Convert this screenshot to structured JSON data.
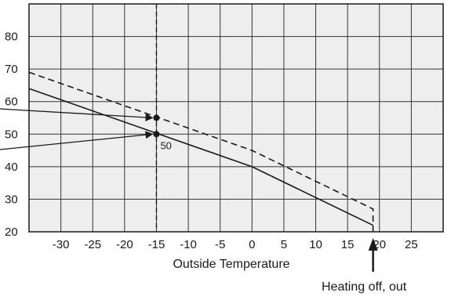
{
  "chart_data": {
    "type": "line",
    "title": "",
    "xlabel": "Outside Temperature",
    "ylabel": "",
    "xlim": [
      -35,
      30
    ],
    "ylim": [
      20,
      90
    ],
    "x_ticks": [
      -30,
      -25,
      -20,
      -15,
      -10,
      -5,
      0,
      5,
      10,
      15,
      20,
      25
    ],
    "y_ticks": [
      20,
      30,
      40,
      50,
      60,
      70,
      80
    ],
    "grid": true,
    "colors": {
      "plot_bg": "#eeeeee",
      "grid": "#333333",
      "line": "#1a1a1a"
    },
    "series": [
      {
        "style": "solid",
        "points": [
          [
            -35,
            64
          ],
          [
            0,
            40
          ],
          [
            19,
            22
          ]
        ]
      },
      {
        "style": "dashed",
        "points": [
          [
            -35,
            69
          ],
          [
            0,
            45
          ],
          [
            19,
            27
          ],
          [
            19,
            20
          ]
        ]
      }
    ],
    "reference_lines": [
      {
        "orientation": "vertical",
        "x": -15,
        "style": "dashed"
      }
    ],
    "highlight_points": [
      {
        "x": -15,
        "y": 55,
        "label": ""
      },
      {
        "x": -15,
        "y": 50,
        "label": "50"
      }
    ],
    "annotations": [
      {
        "text": "Heating off, out",
        "points_to": [
          19,
          20
        ]
      }
    ]
  }
}
